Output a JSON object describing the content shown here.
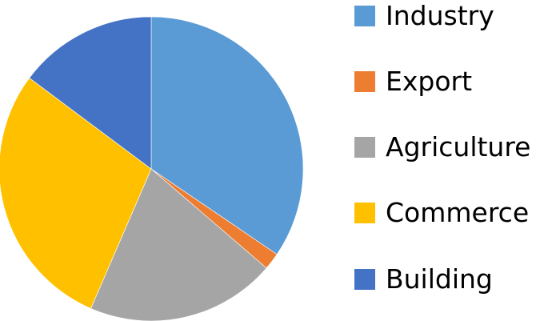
{
  "chart_data": {
    "type": "pie",
    "title": "",
    "start_angle_deg": 0,
    "direction": "clockwise",
    "legend_position": "right",
    "slices": [
      {
        "label": "Industry",
        "value": 34.5,
        "color": "#5B9BD5"
      },
      {
        "label": "Export",
        "value": 1.8,
        "color": "#ED7D31"
      },
      {
        "label": "Agriculture",
        "value": 20.2,
        "color": "#A5A5A5"
      },
      {
        "label": "Commerce",
        "value": 28.7,
        "color": "#FFC000"
      },
      {
        "label": "Building",
        "value": 14.8,
        "color": "#4472C4"
      }
    ]
  }
}
